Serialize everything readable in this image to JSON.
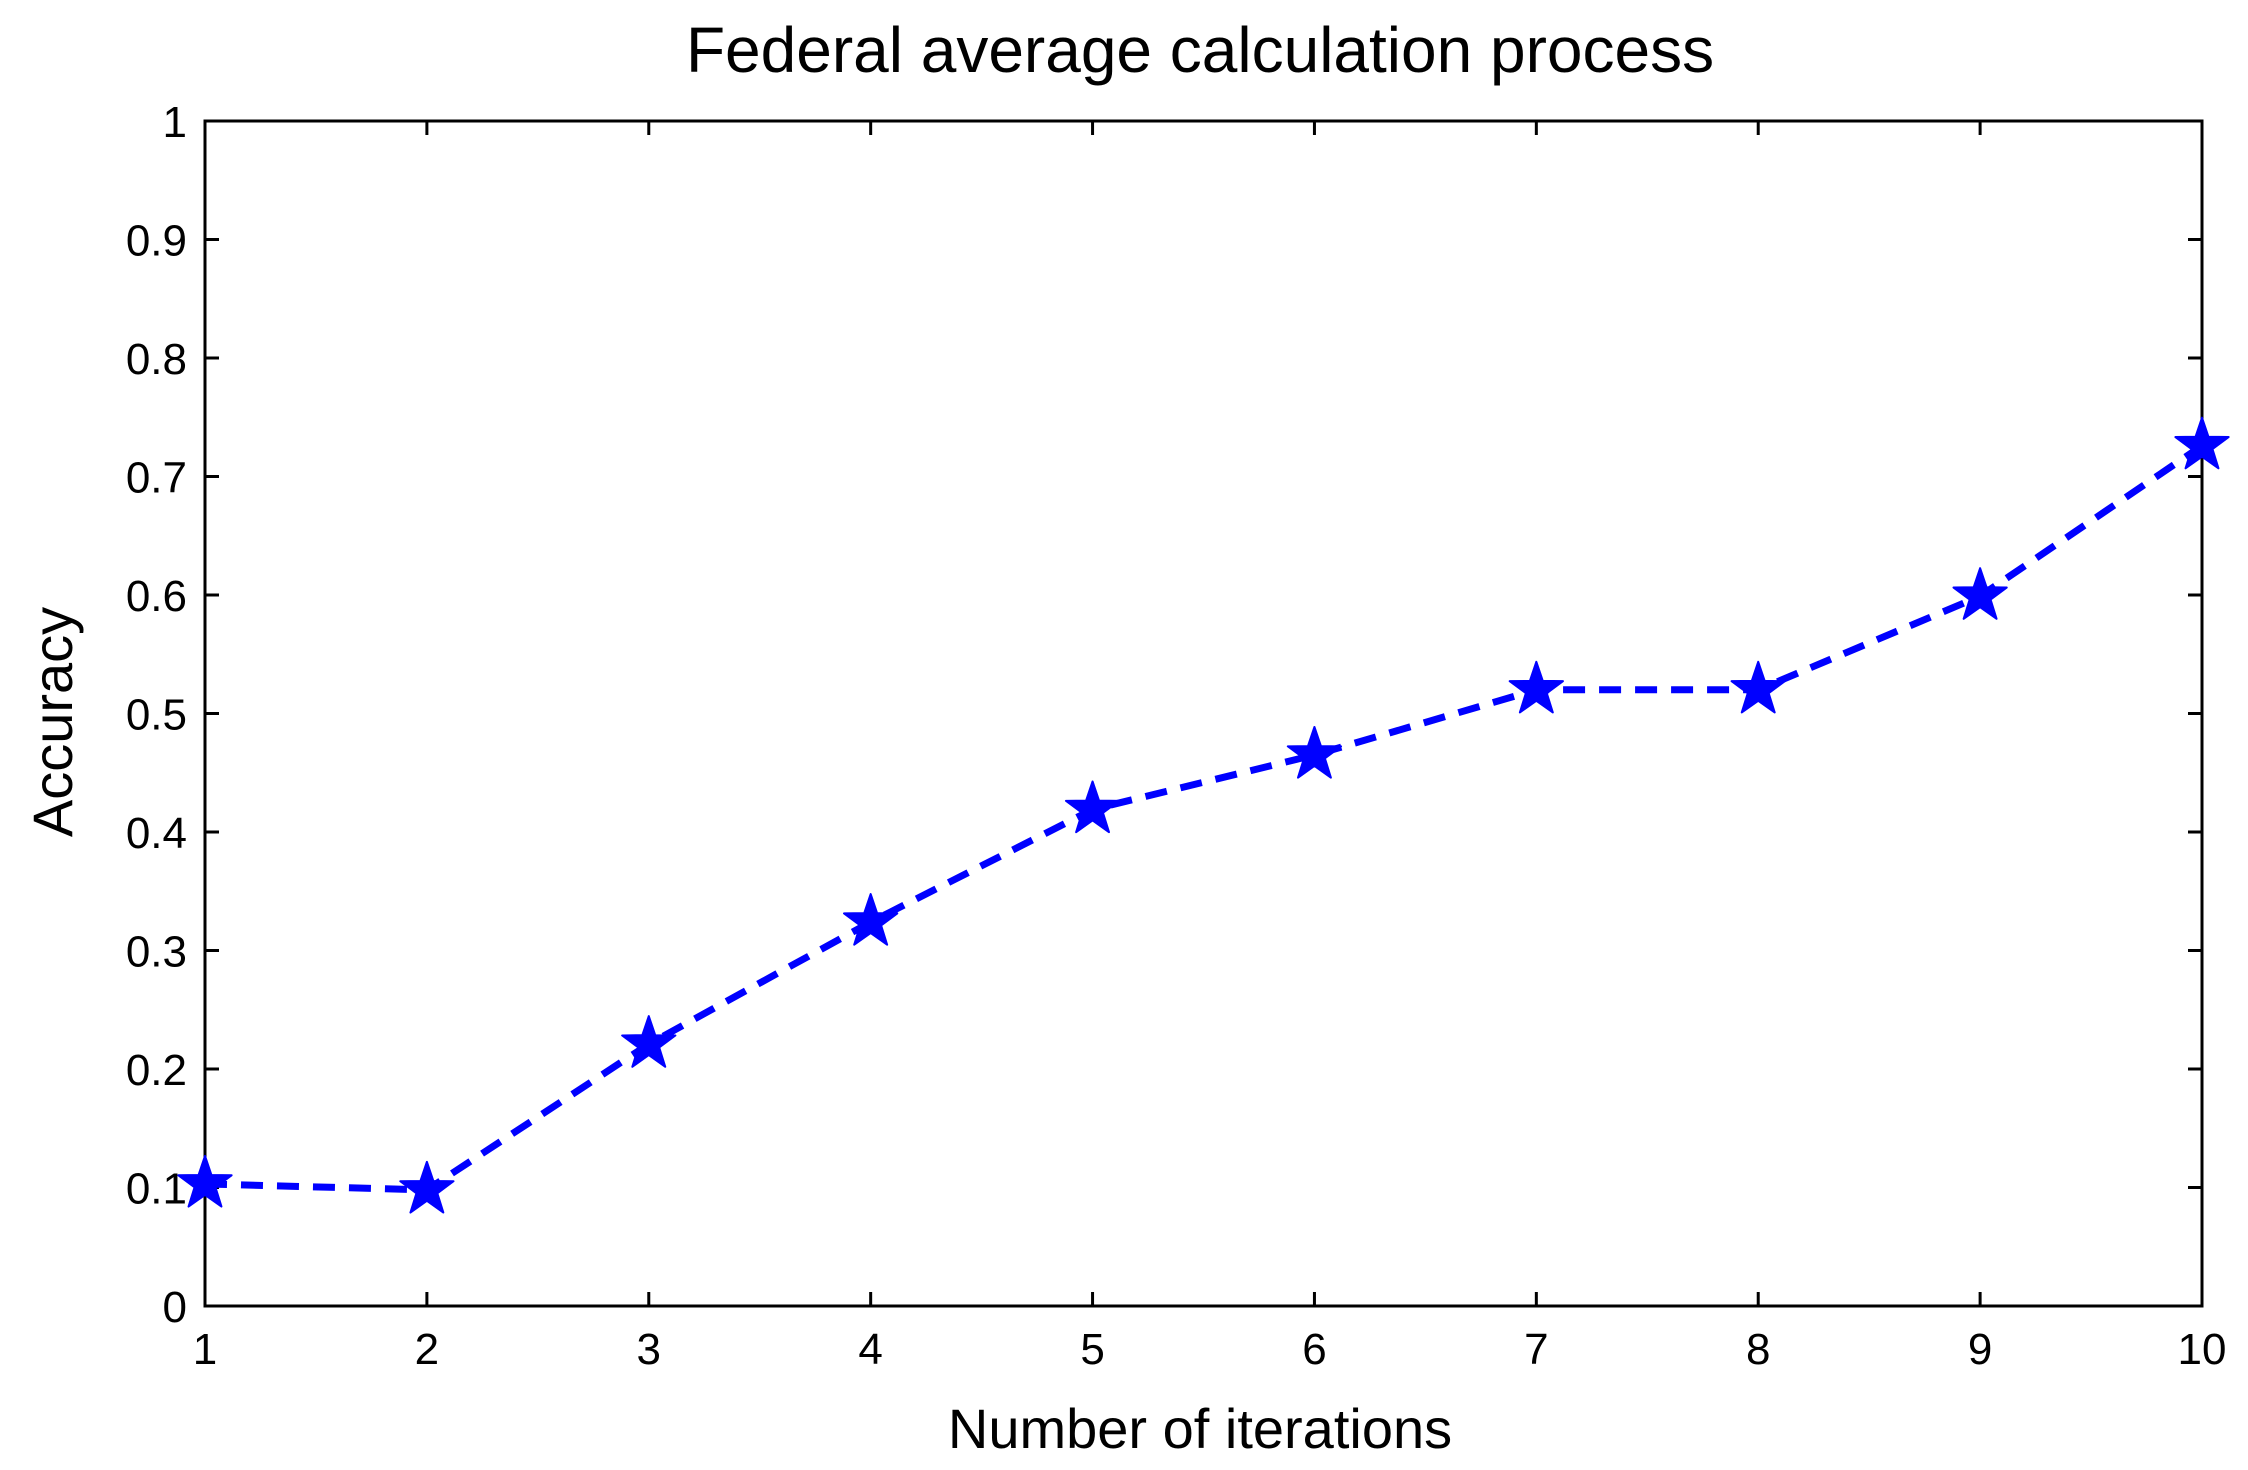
{
  "chart_data": {
    "type": "line",
    "title": "Federal average calculation process",
    "xlabel": "Number of iterations",
    "ylabel": "Accuracy",
    "xlim": [
      1,
      10
    ],
    "ylim": [
      0,
      1
    ],
    "x_ticks": [
      1,
      2,
      3,
      4,
      5,
      6,
      7,
      8,
      9,
      10
    ],
    "y_ticks": [
      0,
      0.1,
      0.2,
      0.3,
      0.4,
      0.5,
      0.6,
      0.7,
      0.8,
      0.9,
      1
    ],
    "x_tick_labels": [
      "1",
      "2",
      "3",
      "4",
      "5",
      "6",
      "7",
      "8",
      "9",
      "10"
    ],
    "y_tick_labels": [
      "0",
      "0.1",
      "0.2",
      "0.3",
      "0.4",
      "0.5",
      "0.6",
      "0.7",
      "0.8",
      "0.9",
      "1"
    ],
    "grid": false,
    "series": [
      {
        "name": "Accuracy",
        "color": "#0000ff",
        "line_style": "dashed",
        "marker": "star",
        "x": [
          1,
          2,
          3,
          4,
          5,
          6,
          7,
          8,
          9,
          10
        ],
        "values": [
          0.103,
          0.098,
          0.221,
          0.324,
          0.419,
          0.465,
          0.52,
          0.52,
          0.599,
          0.726
        ]
      }
    ]
  }
}
